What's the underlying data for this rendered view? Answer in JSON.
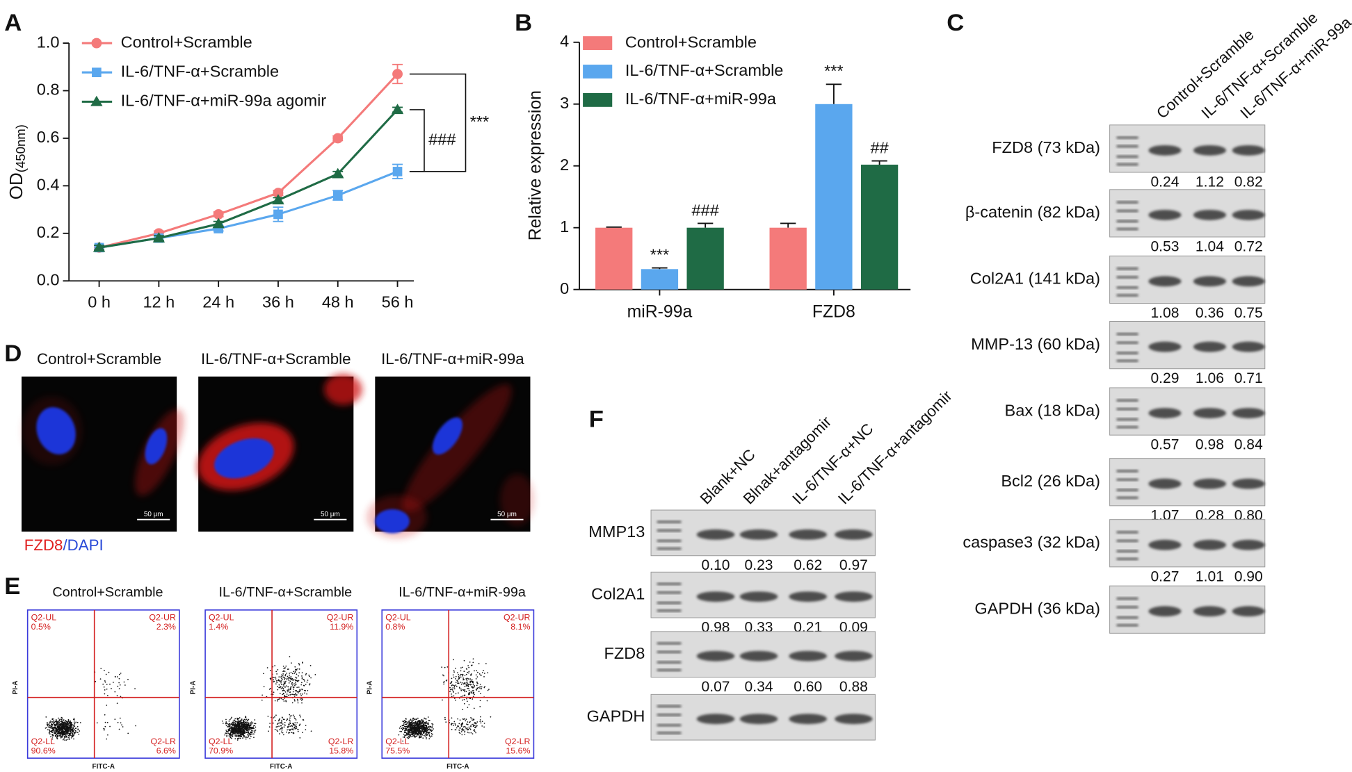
{
  "chart_data": [
    {
      "panel": "A",
      "type": "line",
      "y_label": "OD",
      "y_label_sub": "(450nm)",
      "categories": [
        "0 h",
        "12 h",
        "24 h",
        "36 h",
        "48 h",
        "56 h"
      ],
      "ylim": [
        0,
        1
      ],
      "yticks": [
        {
          "value": 0,
          "label": "0.0"
        },
        0.2,
        0.4,
        0.6,
        0.8,
        {
          "value": 1,
          "label": "1.0"
        }
      ],
      "series": [
        {
          "name": "Control+Scramble",
          "color": "#f47a7a",
          "marker": "circle",
          "values": [
            0.14,
            0.2,
            0.28,
            0.37,
            0.6,
            0.87
          ],
          "errors": [
            0.01,
            0.01,
            0.01,
            0.01,
            0.01,
            0.04
          ]
        },
        {
          "name": "IL-6/TNF-α+Scramble",
          "color": "#5aa7ee",
          "marker": "square",
          "values": [
            0.14,
            0.18,
            0.22,
            0.28,
            0.36,
            0.46
          ],
          "errors": [
            0.01,
            0.01,
            0.01,
            0.03,
            0.02,
            0.03
          ]
        },
        {
          "name": "IL-6/TNF-α+miR-99a agomir",
          "color": "#1f6b45",
          "marker": "triangle",
          "values": [
            0.14,
            0.18,
            0.24,
            0.34,
            0.45,
            0.72
          ],
          "errors": [
            0.01,
            0.01,
            0.01,
            0.01,
            0.01,
            0.01
          ]
        }
      ],
      "annotations": [
        "###",
        "***"
      ]
    },
    {
      "panel": "B",
      "type": "bar",
      "y_label": "Relative expression",
      "categories": [
        "miR-99a",
        "FZD8"
      ],
      "ylim": [
        0,
        4
      ],
      "yticks": [
        0,
        1,
        2,
        3,
        4
      ],
      "series": [
        {
          "name": "Control+Scramble",
          "color": "#f47a7a",
          "values": [
            1.0,
            1.0
          ],
          "errors": [
            0.01,
            0.07
          ]
        },
        {
          "name": "IL-6/TNF-α+Scramble",
          "color": "#5aa7ee",
          "values": [
            0.33,
            3.0
          ],
          "errors": [
            0.02,
            0.32
          ],
          "significance": [
            "***",
            "***"
          ]
        },
        {
          "name": "IL-6/TNF-α+miR-99a",
          "color": "#1f6b45",
          "values": [
            1.0,
            2.02
          ],
          "errors": [
            0.07,
            0.06
          ],
          "significance": [
            "###",
            "##"
          ]
        }
      ]
    }
  ],
  "panel_c": {
    "panel": "C",
    "lanes": [
      "Control+Scramble",
      "IL-6/TNF-α+Scramble",
      "IL-6/TNF-α+miR-99a"
    ],
    "rows": [
      {
        "label": "FZD8 (73 kDa)",
        "values": [
          "0.24",
          "1.12",
          "0.82"
        ]
      },
      {
        "label": "β-catenin (82 kDa)",
        "values": [
          "0.53",
          "1.04",
          "0.72"
        ]
      },
      {
        "label": "Col2A1 (141 kDa)",
        "values": [
          "1.08",
          "0.36",
          "0.75"
        ]
      },
      {
        "label": "MMP-13 (60 kDa)",
        "values": [
          "0.29",
          "1.06",
          "0.71"
        ]
      },
      {
        "label": "Bax (18 kDa)",
        "values": [
          "0.57",
          "0.98",
          "0.84"
        ]
      },
      {
        "label": "Bcl2 (26 kDa)",
        "values": [
          "1.07",
          "0.28",
          "0.80"
        ]
      },
      {
        "label": "caspase3 (32 kDa)",
        "values": [
          "0.27",
          "1.01",
          "0.90"
        ]
      },
      {
        "label": "GAPDH (36 kDa)"
      }
    ]
  },
  "panel_d": {
    "panel": "D",
    "images": [
      "Control+Scramble",
      "IL-6/TNF-α+Scramble",
      "IL-6/TNF-α+miR-99a"
    ],
    "scale_bar": "50 μm",
    "stain": [
      "FZD8",
      "/",
      "DAPI"
    ]
  },
  "panel_e": {
    "panel": "E",
    "x_label": "FITC-A",
    "y_label": "PI-A",
    "plots": [
      {
        "title": "Control+Scramble",
        "quadrants": [
          [
            "Q2-UL",
            "0.5%"
          ],
          [
            "Q2-UR",
            "2.3%"
          ],
          [
            "Q2-LL",
            "90.6%"
          ],
          [
            "Q2-LR",
            "6.6%"
          ]
        ]
      },
      {
        "title": "IL-6/TNF-α+Scramble",
        "quadrants": [
          [
            "Q2-UL",
            "1.4%"
          ],
          [
            "Q2-UR",
            "11.9%"
          ],
          [
            "Q2-LL",
            "70.9%"
          ],
          [
            "Q2-LR",
            "15.8%"
          ]
        ]
      },
      {
        "title": "IL-6/TNF-α+miR-99a",
        "quadrants": [
          [
            "Q2-UL",
            "0.8%"
          ],
          [
            "Q2-UR",
            "8.1%"
          ],
          [
            "Q2-LL",
            "75.5%"
          ],
          [
            "Q2-LR",
            "15.6%"
          ]
        ]
      }
    ]
  },
  "panel_f": {
    "panel": "F",
    "lanes": [
      "Blank+NC",
      "Blnak+antagomir",
      "IL-6/TNF-α+NC",
      "IL-6/TNF-α+antagomir"
    ],
    "rows": [
      {
        "label": "MMP13",
        "values": [
          "0.10",
          "0.23",
          "0.62",
          "0.97"
        ]
      },
      {
        "label": "Col2A1",
        "values": [
          "0.98",
          "0.33",
          "0.21",
          "0.09"
        ]
      },
      {
        "label": "FZD8",
        "values": [
          "0.07",
          "0.34",
          "0.60",
          "0.88"
        ]
      },
      {
        "label": "GAPDH"
      }
    ]
  }
}
